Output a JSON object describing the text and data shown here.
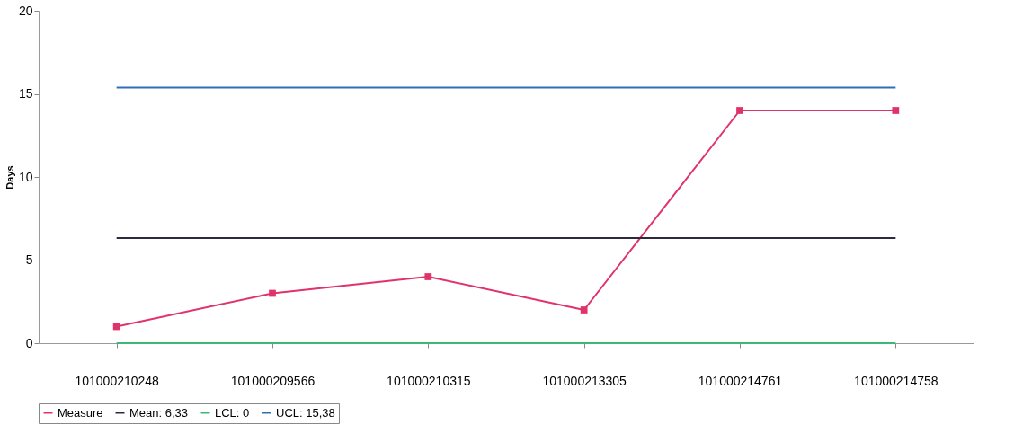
{
  "chart_data": {
    "type": "line",
    "ylabel": "Days",
    "categories": [
      "101000210248",
      "101000209566",
      "101000210315",
      "101000213305",
      "101000214761",
      "101000214758"
    ],
    "series": [
      {
        "name": "Measure",
        "color": "#e0336a",
        "marker": "square",
        "values": [
          1,
          3,
          4,
          2,
          14,
          14
        ]
      },
      {
        "name": "Mean: 6,33",
        "color": "#2b2b3b",
        "marker": "none",
        "values": [
          6.33,
          6.33,
          6.33,
          6.33,
          6.33,
          6.33
        ]
      },
      {
        "name": "LCL: 0",
        "color": "#3cb878",
        "marker": "none",
        "values": [
          0,
          0,
          0,
          0,
          0,
          0
        ]
      },
      {
        "name": "UCL: 15,38",
        "color": "#2f6fb5",
        "marker": "none",
        "values": [
          15.38,
          15.38,
          15.38,
          15.38,
          15.38,
          15.38
        ]
      }
    ],
    "ylim": [
      0,
      20
    ],
    "yticks": [
      0,
      5,
      10,
      15,
      20
    ],
    "grid": false,
    "legend": "bottom",
    "line_style": "solid"
  }
}
